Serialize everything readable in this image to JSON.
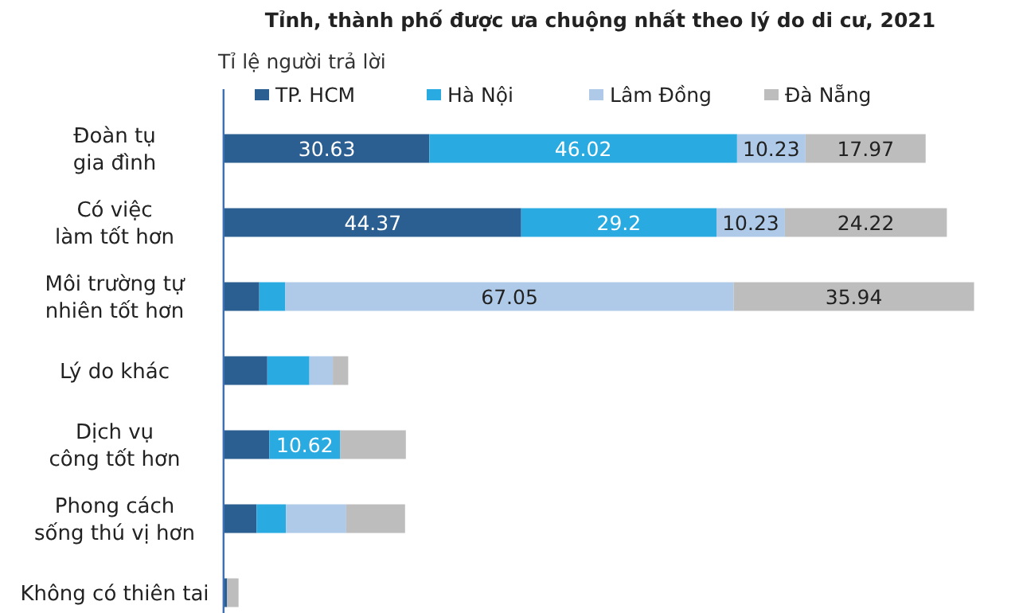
{
  "chart_data": {
    "type": "bar",
    "orientation": "horizontal",
    "stacked": true,
    "title": "Tỉnh, thành phố được ưa chuộng nhất theo lý do di cư, 2021",
    "subtitle": "Tỉ lệ người trả lời",
    "legend": "top",
    "categories": [
      "Đoàn tụ\ngia đình",
      "Có việc\nlàm tốt hơn",
      "Môi trường tự\nnhiên tốt hơn",
      "Lý do khác",
      "Dịch vụ\ncông tốt hơn",
      "Phong cách\nsống thú vị hơn",
      "Không có thiên tai"
    ],
    "series": [
      {
        "name": "TP. HCM",
        "color": "#2c5f91",
        "values": [
          30.63,
          44.37,
          5.2,
          6.4,
          6.7,
          4.8,
          0.4
        ],
        "value_labels": [
          "30.63",
          "44.37",
          null,
          null,
          null,
          null,
          null
        ]
      },
      {
        "name": "Hà Nội",
        "color": "#29abe2",
        "values": [
          46.02,
          29.2,
          3.9,
          6.3,
          10.62,
          4.4,
          0
        ],
        "value_labels": [
          "46.02",
          "29.2",
          null,
          null,
          "10.62",
          null,
          null
        ]
      },
      {
        "name": "Lâm Đồng",
        "color": "#aecae8",
        "values": [
          10.23,
          10.23,
          67.05,
          3.5,
          0,
          9.0,
          0
        ],
        "value_labels": [
          "10.23",
          "10.23",
          "67.05",
          null,
          null,
          null,
          null
        ]
      },
      {
        "name": "Đà Nẵng",
        "color": "#bdbdbd",
        "values": [
          17.97,
          24.22,
          35.94,
          2.3,
          9.8,
          8.8,
          1.7
        ],
        "value_labels": [
          "17.97",
          "24.22",
          "35.94",
          null,
          null,
          null,
          null
        ]
      }
    ]
  }
}
